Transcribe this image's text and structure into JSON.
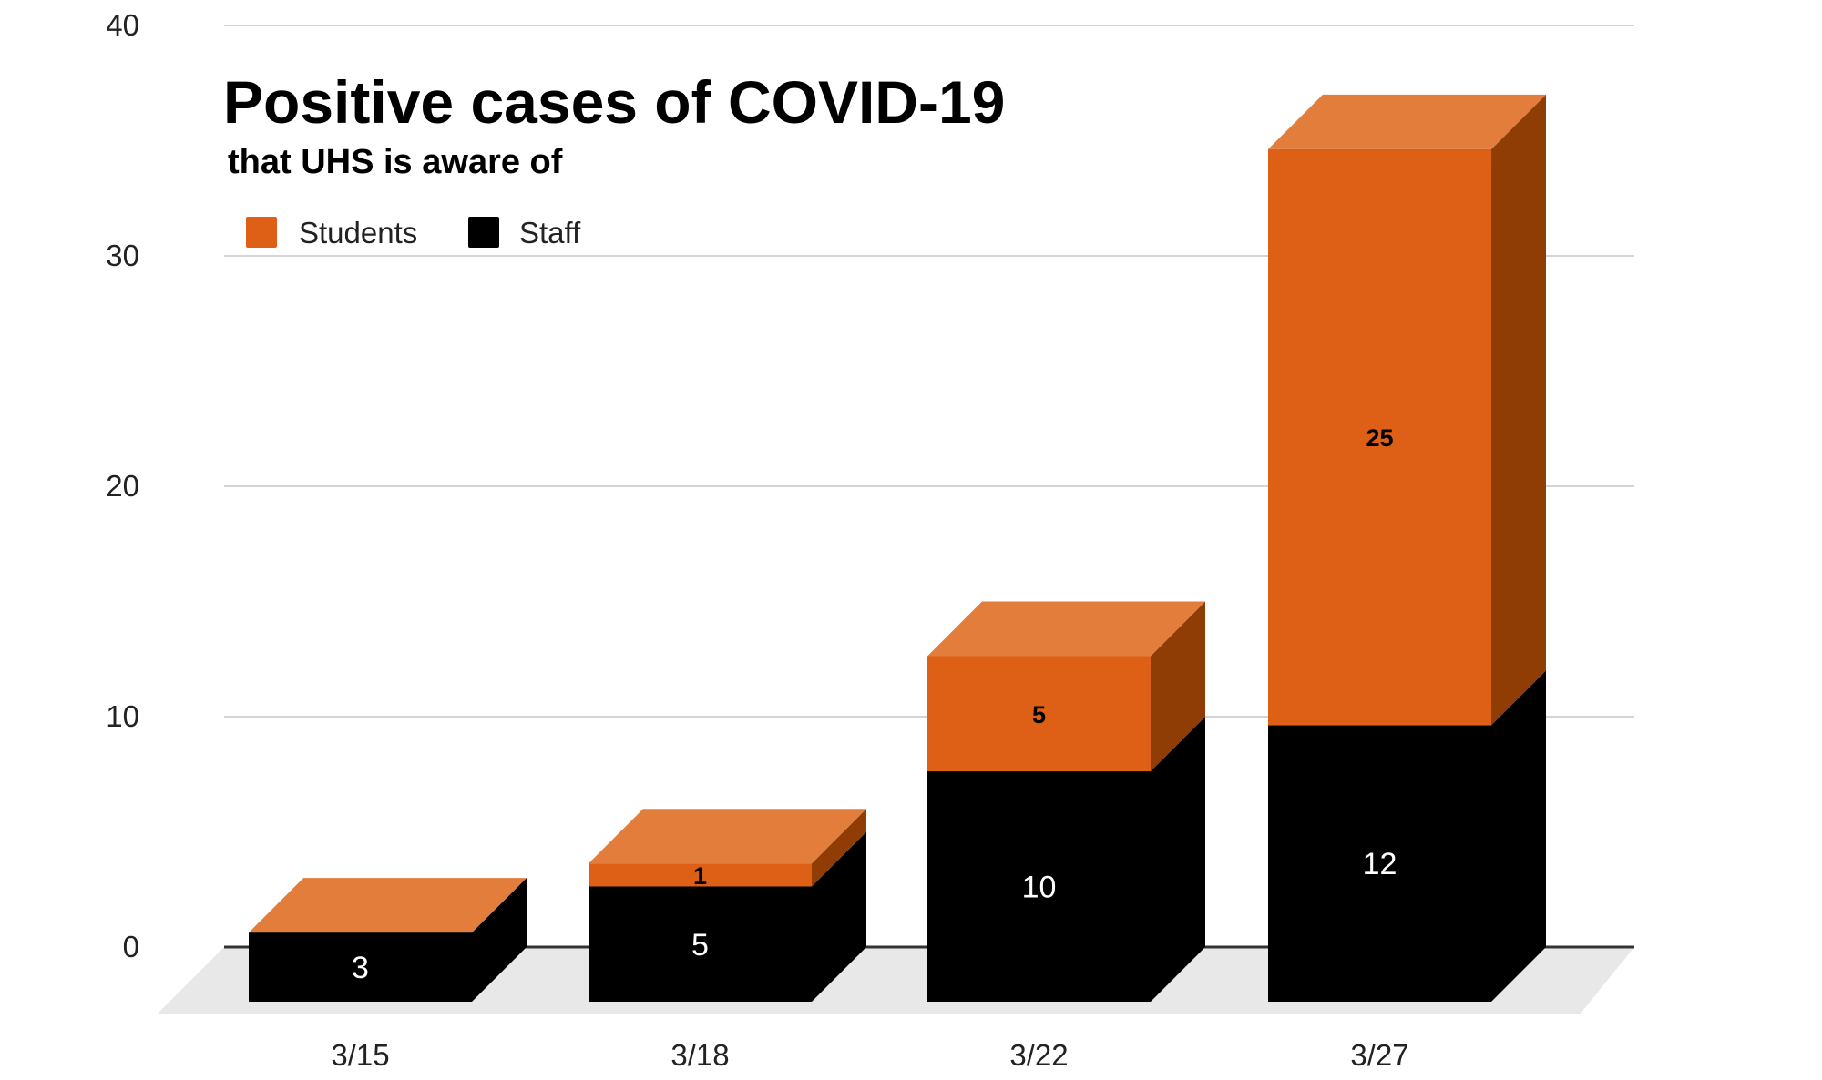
{
  "chart_data": {
    "type": "bar",
    "stacked": true,
    "three_d": true,
    "title": "Positive cases of COVID-19",
    "subtitle": "that UHS is aware of",
    "categories": [
      "3/15",
      "3/18",
      "3/22",
      "3/27"
    ],
    "series": [
      {
        "name": "Staff",
        "values": [
          3,
          5,
          10,
          12
        ],
        "color": "#000000"
      },
      {
        "name": "Students",
        "values": [
          0,
          1,
          5,
          25
        ],
        "color": "#dd6016"
      }
    ],
    "data_labels": {
      "Staff": [
        "3",
        "5",
        "10",
        "12"
      ],
      "Students": [
        "",
        "1",
        "5",
        "25"
      ]
    },
    "yticks": [
      "0",
      "10",
      "20",
      "30",
      "40"
    ],
    "ylim": [
      0,
      40
    ],
    "grid": true,
    "legend_position": "top-left",
    "colors": {
      "students_front": "#dd6016",
      "students_top": "#e27d3b",
      "students_side": "#8f3d05",
      "staff": "#000000",
      "floor": "#e8e8e8",
      "grid": "#d4d4d4",
      "baseline": "#333333"
    }
  }
}
